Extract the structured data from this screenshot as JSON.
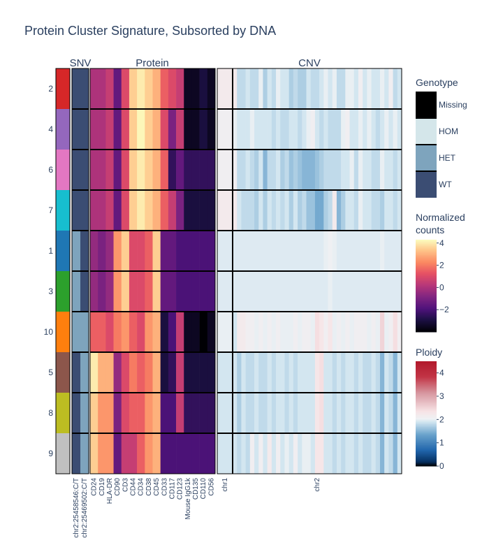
{
  "chart_data": {
    "type": "heatmap",
    "title": "Protein Cluster Signature, Subsorted by DNA",
    "panels": [
      {
        "name": "SNV",
        "columns": [
          "chr2:25458546:C/T",
          "chr2:25469502:C/T"
        ],
        "colorscale": "Genotype",
        "values": [
          [
            0,
            0
          ],
          [
            0,
            0
          ],
          [
            0,
            0
          ],
          [
            0,
            0
          ],
          [
            1,
            0
          ],
          [
            1,
            0
          ],
          [
            1,
            1
          ],
          [
            0,
            1
          ],
          [
            0,
            1
          ],
          [
            0,
            1
          ]
        ]
      },
      {
        "name": "Protein",
        "columns": [
          "CD24",
          "CD19",
          "HLA-DR",
          "CD90",
          "CD3",
          "CD44",
          "CD34",
          "CD38",
          "CD45",
          "CD33",
          "CD117",
          "CD123",
          "Mouse IgG1k",
          "CD135",
          "CD110",
          "CD56"
        ],
        "colorscale": "Normalized counts",
        "values": [
          [
            0.0,
            0.0,
            0.5,
            -1.5,
            1.0,
            3.5,
            4.0,
            3.5,
            3.0,
            1.5,
            1.0,
            0.5,
            -3.5,
            -3.5,
            -3.0,
            -3.5
          ],
          [
            0.0,
            0.0,
            0.5,
            -1.5,
            1.0,
            3.5,
            4.2,
            3.5,
            3.0,
            1.0,
            -1.0,
            0.5,
            -3.5,
            -3.5,
            -3.0,
            -3.5
          ],
          [
            0.0,
            0.0,
            0.5,
            -1.5,
            1.0,
            3.5,
            4.0,
            3.5,
            3.0,
            1.5,
            -2.5,
            -1.5,
            -2.5,
            -2.5,
            -2.5,
            -2.5
          ],
          [
            0.0,
            0.0,
            0.5,
            -1.5,
            1.0,
            3.5,
            4.0,
            3.5,
            3.0,
            1.5,
            0.5,
            -1.0,
            -3.0,
            -3.0,
            -3.0,
            -3.0
          ],
          [
            -0.5,
            -1.0,
            -0.5,
            2.5,
            3.5,
            1.0,
            1.0,
            1.5,
            3.5,
            -1.5,
            -1.5,
            -2.0,
            -2.0,
            -2.0,
            -2.0,
            -2.0
          ],
          [
            -0.5,
            -1.0,
            -0.5,
            2.5,
            3.5,
            1.0,
            1.0,
            1.5,
            3.5,
            -1.5,
            -1.5,
            -2.0,
            -2.0,
            -2.0,
            -2.0,
            -2.0
          ],
          [
            1.5,
            1.5,
            1.0,
            2.0,
            2.5,
            1.5,
            1.0,
            2.5,
            3.0,
            -3.0,
            -2.0,
            0.5,
            -3.5,
            -3.5,
            -4.0,
            -3.5
          ],
          [
            4.0,
            3.0,
            3.0,
            -0.5,
            1.0,
            2.0,
            1.5,
            2.0,
            3.0,
            -3.0,
            -2.5,
            0.5,
            -3.0,
            -3.0,
            -3.0,
            -3.0
          ],
          [
            3.5,
            2.5,
            2.5,
            -1.0,
            1.0,
            1.5,
            1.5,
            2.5,
            3.0,
            -2.0,
            -2.0,
            0.5,
            -2.5,
            -2.5,
            -2.5,
            -2.5
          ],
          [
            3.5,
            2.5,
            2.5,
            -1.5,
            0.5,
            0.5,
            1.5,
            2.5,
            3.0,
            -2.0,
            -2.0,
            -2.0,
            -2.0,
            -2.0,
            -2.0,
            -2.0
          ]
        ]
      },
      {
        "name": "CNV",
        "columns": [
          "chr1",
          "chr2"
        ],
        "colorscale": "Ploidy",
        "chr1_bins": 1,
        "values": [
          [
            2.2,
            2.2,
            1.8,
            1.8,
            1.9,
            1.8,
            1.8,
            2.0,
            1.7,
            1.9,
            1.8,
            2.0,
            1.9,
            1.9,
            1.7,
            1.8,
            1.7,
            1.7,
            1.9,
            1.8,
            1.8,
            1.9,
            2.0,
            1.9,
            2.0,
            1.8,
            1.8,
            2.0,
            2.0,
            1.9,
            2.1,
            1.9,
            2.0,
            1.9,
            1.9,
            2.0,
            1.9,
            2.1,
            1.8,
            1.9
          ],
          [
            2.1,
            2.0,
            1.9,
            1.9,
            1.9,
            2.0,
            1.9,
            1.9,
            1.9,
            1.9,
            1.8,
            1.9,
            1.8,
            1.8,
            1.9,
            1.9,
            1.8,
            1.9,
            2.0,
            2.1,
            1.9,
            1.8,
            1.9,
            1.8,
            1.8,
            1.8,
            2.0,
            2.1,
            1.9,
            1.9,
            2.0,
            1.9,
            2.0,
            1.9,
            1.8,
            1.9,
            2.0,
            1.9,
            2.0,
            1.9
          ],
          [
            2.1,
            2.1,
            1.8,
            1.8,
            1.9,
            1.8,
            1.7,
            1.9,
            1.5,
            1.8,
            1.8,
            1.9,
            1.7,
            1.8,
            1.6,
            1.7,
            1.6,
            1.5,
            1.5,
            1.5,
            1.6,
            1.7,
            1.8,
            1.8,
            1.8,
            1.8,
            1.9,
            1.9,
            2.0,
            1.8,
            2.0,
            1.9,
            1.9,
            1.8,
            1.8,
            2.0,
            1.9,
            1.9,
            1.8,
            1.9
          ],
          [
            2.2,
            2.2,
            1.9,
            1.8,
            1.8,
            1.8,
            1.7,
            1.9,
            1.7,
            1.9,
            1.8,
            1.9,
            1.8,
            1.9,
            1.7,
            1.9,
            1.7,
            1.8,
            1.6,
            1.6,
            1.4,
            1.4,
            1.7,
            1.8,
            2.2,
            1.5,
            1.7,
            1.9,
            1.9,
            1.8,
            2.0,
            1.9,
            1.9,
            1.8,
            1.8,
            1.7,
            1.9,
            1.9,
            1.8,
            1.9
          ],
          [
            1.95,
            1.95,
            1.95,
            1.95,
            1.95,
            1.95,
            1.95,
            1.95,
            1.95,
            1.95,
            1.95,
            1.95,
            1.95,
            1.95,
            1.95,
            1.95,
            1.95,
            1.95,
            1.95,
            1.95,
            1.95,
            1.95,
            2.0,
            2.05,
            2.0,
            1.95,
            1.95,
            1.95,
            1.95,
            1.95,
            1.95,
            1.95,
            1.95,
            1.95,
            1.95,
            2.0,
            1.95,
            1.95,
            1.95,
            1.95
          ],
          [
            1.95,
            1.95,
            1.95,
            1.95,
            1.95,
            1.95,
            1.95,
            1.95,
            1.95,
            1.95,
            1.95,
            1.95,
            1.95,
            1.95,
            1.95,
            1.95,
            1.95,
            1.95,
            1.95,
            1.95,
            1.95,
            1.95,
            1.95,
            2.0,
            1.95,
            1.95,
            1.95,
            1.95,
            1.95,
            1.95,
            1.95,
            1.95,
            1.95,
            1.95,
            1.95,
            1.95,
            1.95,
            1.95,
            1.95,
            1.95
          ],
          [
            2.0,
            1.9,
            2.2,
            2.2,
            2.1,
            2.1,
            2.0,
            2.1,
            2.0,
            2.1,
            2.0,
            2.1,
            2.0,
            2.0,
            2.0,
            2.1,
            2.0,
            2.1,
            2.1,
            2.0,
            2.4,
            2.3,
            2.1,
            2.3,
            2.0,
            2.1,
            2.0,
            2.1,
            2.0,
            2.1,
            2.1,
            2.1,
            2.0,
            2.1,
            2.0,
            2.5,
            2.0,
            2.1,
            2.4,
            2.1
          ],
          [
            1.9,
            1.9,
            1.7,
            1.9,
            1.8,
            1.8,
            1.9,
            1.8,
            1.8,
            1.9,
            1.8,
            1.9,
            1.9,
            1.8,
            1.9,
            1.8,
            1.9,
            1.9,
            1.9,
            1.9,
            2.3,
            2.4,
            1.9,
            1.9,
            1.8,
            1.9,
            1.8,
            1.9,
            1.9,
            1.8,
            1.9,
            1.8,
            1.8,
            1.9,
            1.8,
            1.5,
            1.9,
            1.8,
            1.5,
            1.9
          ],
          [
            1.9,
            1.9,
            1.7,
            1.9,
            1.8,
            1.8,
            1.9,
            1.8,
            1.8,
            1.9,
            1.8,
            1.9,
            1.9,
            1.8,
            1.9,
            1.8,
            1.9,
            1.9,
            1.9,
            1.9,
            2.3,
            2.4,
            1.9,
            1.9,
            1.8,
            1.9,
            1.8,
            1.9,
            1.9,
            1.8,
            1.9,
            1.8,
            1.8,
            1.9,
            1.8,
            1.5,
            1.9,
            1.8,
            1.5,
            1.9
          ],
          [
            1.9,
            1.9,
            1.8,
            1.9,
            1.8,
            2.1,
            1.9,
            2.1,
            1.9,
            2.2,
            1.9,
            2.1,
            1.9,
            2.0,
            1.9,
            2.1,
            1.9,
            2.0,
            2.0,
            1.9,
            2.3,
            2.3,
            1.9,
            1.9,
            1.8,
            1.9,
            1.8,
            1.9,
            1.9,
            1.8,
            1.9,
            1.8,
            1.8,
            1.9,
            1.8,
            1.5,
            1.9,
            1.8,
            1.5,
            1.9
          ]
        ]
      }
    ],
    "clusters": [
      {
        "label": "2",
        "color": "#d62728"
      },
      {
        "label": "4",
        "color": "#9467bd"
      },
      {
        "label": "6",
        "color": "#e377c2"
      },
      {
        "label": "7",
        "color": "#17becf"
      },
      {
        "label": "1",
        "color": "#1f77b4"
      },
      {
        "label": "3",
        "color": "#2ca02c"
      },
      {
        "label": "10",
        "color": "#ff7f0e"
      },
      {
        "label": "5",
        "color": "#8c564b"
      },
      {
        "label": "8",
        "color": "#bcbd22"
      },
      {
        "label": "9",
        "color": "#c0c0c0"
      }
    ],
    "legends": {
      "genotype": {
        "title": "Genotype",
        "categories": [
          "Missing",
          "HOM",
          "HET",
          "WT"
        ],
        "colors": [
          "#000000",
          "#d4e6ea",
          "#7ea4bd",
          "#3b4d73"
        ]
      },
      "normalized": {
        "title_line1": "Normalized",
        "title_line2": "counts",
        "ticks": [
          "4",
          "2",
          "0",
          "−2"
        ],
        "tick_values": [
          4,
          2,
          0,
          -2
        ],
        "range": [
          -4,
          4.3
        ]
      },
      "ploidy": {
        "title": "Ploidy",
        "ticks": [
          "4",
          "3",
          "2",
          "1",
          "0"
        ],
        "tick_values": [
          4,
          3,
          2,
          1,
          0
        ],
        "range": [
          0,
          4.5
        ]
      }
    }
  }
}
